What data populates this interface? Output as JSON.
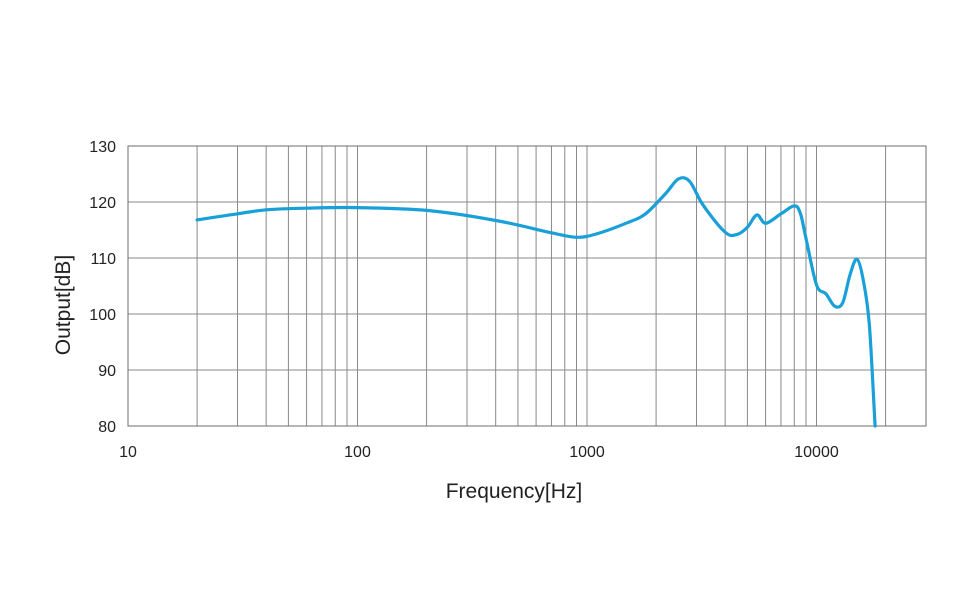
{
  "chart_data": {
    "type": "line",
    "xlabel": "Frequency[Hz]",
    "ylabel": "Output[dB]",
    "x_scale": "log",
    "xlim": [
      10,
      30000
    ],
    "ylim": [
      80,
      130
    ],
    "x_ticks": [
      10,
      100,
      1000,
      10000
    ],
    "x_tick_labels": [
      "10",
      "100",
      "1000",
      "10000"
    ],
    "y_ticks": [
      80,
      90,
      100,
      110,
      120,
      130
    ],
    "y_tick_labels": [
      "80",
      "90",
      "100",
      "110",
      "120",
      "130"
    ],
    "grid": true,
    "line_color": "#1aa0d8",
    "series": [
      {
        "x": [
          20,
          30,
          40,
          60,
          100,
          200,
          400,
          700,
          900,
          1100,
          1500,
          1800,
          2200,
          2500,
          2800,
          3200,
          4000,
          4500,
          5000,
          5500,
          6000,
          7000,
          8000,
          8500,
          9000,
          10000,
          11000,
          12000,
          13000,
          14000,
          15000,
          16000,
          17000,
          18000
        ],
        "y": [
          116.8,
          117.9,
          118.6,
          118.9,
          119.0,
          118.5,
          116.7,
          114.5,
          113.7,
          114.3,
          116.3,
          117.9,
          121.5,
          124.1,
          123.7,
          119.5,
          114.6,
          114.2,
          115.5,
          117.7,
          116.2,
          117.9,
          119.3,
          118.0,
          113.5,
          105.2,
          103.6,
          101.4,
          102.0,
          107.0,
          109.8,
          106.0,
          98.0,
          80.0
        ]
      }
    ]
  }
}
